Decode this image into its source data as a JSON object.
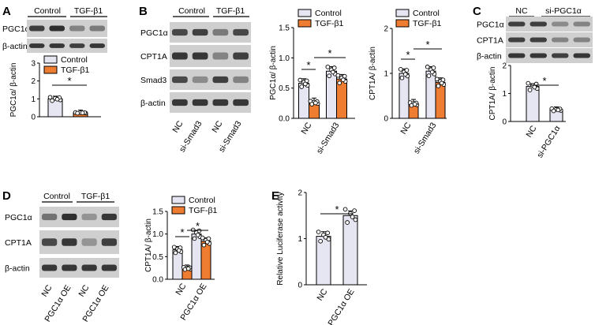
{
  "colors": {
    "control": "#e6e6f2",
    "treat": "#ee7d32",
    "axis": "#000000",
    "blot_bg": "#cfcfcf",
    "band": "#262626"
  },
  "panels": {
    "A": {
      "letter": "A",
      "blot": {
        "group_labels": [
          "Control",
          "TGF-β1"
        ],
        "rows": [
          "PGC1α",
          "β-actin"
        ]
      },
      "legend": [
        "Control",
        "TGF-β1"
      ],
      "star": "*"
    },
    "B": {
      "letter": "B",
      "blot": {
        "group_labels": [
          "Control",
          "TGF-β1"
        ],
        "rows": [
          "PGC1α",
          "CPT1A",
          "Smad3",
          "β-actin"
        ],
        "lane_labels": [
          "NC",
          "si-Smad3",
          "NC",
          "si-Smad3"
        ]
      },
      "legend": [
        "Control",
        "TGF-β1"
      ],
      "star": "*"
    },
    "C": {
      "letter": "C",
      "blot": {
        "group_labels": [
          "NC",
          "si-PGC1α"
        ],
        "rows": [
          "PGC1α",
          "CPT1A",
          "β-actin"
        ]
      },
      "star": "*"
    },
    "D": {
      "letter": "D",
      "blot": {
        "group_labels": [
          "Control",
          "TGF-β1"
        ],
        "rows": [
          "PGC1α",
          "CPT1A",
          "β-actin"
        ],
        "lane_labels": [
          "NC",
          "PGC1α OE",
          "NC",
          "PGC1α OE"
        ]
      },
      "legend": [
        "Control",
        "TGF-β1"
      ],
      "star": "*"
    },
    "E": {
      "letter": "E",
      "star": "*"
    }
  },
  "chart_data": [
    {
      "id": "A",
      "type": "bar",
      "categories": [
        ""
      ],
      "series": [
        {
          "name": "Control",
          "values": [
            1.0
          ]
        },
        {
          "name": "TGF-β1",
          "values": [
            0.22
          ]
        }
      ],
      "ylabel": "PGC1α/ β-actin",
      "ylim": [
        0,
        3
      ],
      "yticks": [
        "0",
        "1",
        "2",
        "3"
      ],
      "legend": "top-left",
      "significance": [
        "Control vs TGF-β1"
      ]
    },
    {
      "id": "B1",
      "type": "bar",
      "categories": [
        "NC",
        "si-Smad3"
      ],
      "series": [
        {
          "name": "Control",
          "values": [
            0.58,
            0.78
          ]
        },
        {
          "name": "TGF-β1",
          "values": [
            0.26,
            0.65
          ]
        }
      ],
      "ylabel": "PGC1α/ β-actin",
      "ylim": [
        0,
        1.5
      ],
      "yticks": [
        "0.0",
        "0.5",
        "1.0",
        "1.5"
      ],
      "legend": "top-right",
      "significance": [
        "NC Control vs NC TGF-β1",
        "NC TGF-β1 vs si-Smad3 TGF-β1"
      ]
    },
    {
      "id": "B2",
      "type": "bar",
      "categories": [
        "NC",
        "si-Smad3"
      ],
      "series": [
        {
          "name": "Control",
          "values": [
            1.0,
            1.05
          ]
        },
        {
          "name": "TGF-β1",
          "values": [
            0.32,
            0.8
          ]
        }
      ],
      "ylabel": "CPT1A/ β-actin",
      "ylim": [
        0,
        2
      ],
      "yticks": [
        "0",
        "1",
        "2"
      ],
      "legend": "top-right",
      "significance": [
        "NC Control vs NC TGF-β1",
        "NC TGF-β1 vs si-Smad3 TGF-β1"
      ]
    },
    {
      "id": "C",
      "type": "bar",
      "categories": [
        "NC",
        "si-PGC1α"
      ],
      "series": [
        {
          "name": "",
          "values": [
            1.25,
            0.42
          ]
        }
      ],
      "ylabel": "CPT1A/ β-actin",
      "ylim": [
        0,
        2
      ],
      "yticks": [
        "0",
        "1",
        "2"
      ],
      "significance": [
        "NC vs si-PGC1α"
      ]
    },
    {
      "id": "D",
      "type": "bar",
      "categories": [
        "NC",
        "PGC1α OE"
      ],
      "series": [
        {
          "name": "Control",
          "values": [
            0.65,
            1.0
          ]
        },
        {
          "name": "TGF-β1",
          "values": [
            0.24,
            0.84
          ]
        }
      ],
      "ylabel": "CPT1A/ β-actin",
      "ylim": [
        0,
        1.5
      ],
      "yticks": [
        "0.0",
        "0.5",
        "1.0",
        "1.5"
      ],
      "legend": "top-left",
      "significance": [
        "NC Control vs NC TGF-β1",
        "NC TGF-β1 vs PGC1α OE TGF-β1"
      ]
    },
    {
      "id": "E",
      "type": "bar",
      "categories": [
        "NC",
        "PGC1α OE"
      ],
      "series": [
        {
          "name": "",
          "values": [
            1.05,
            1.5
          ]
        }
      ],
      "ylabel": "Relative Luciferase activity",
      "ylim": [
        0,
        2
      ],
      "yticks": [
        "0",
        "1",
        "2"
      ],
      "significance": [
        "NC vs PGC1α OE"
      ]
    }
  ]
}
